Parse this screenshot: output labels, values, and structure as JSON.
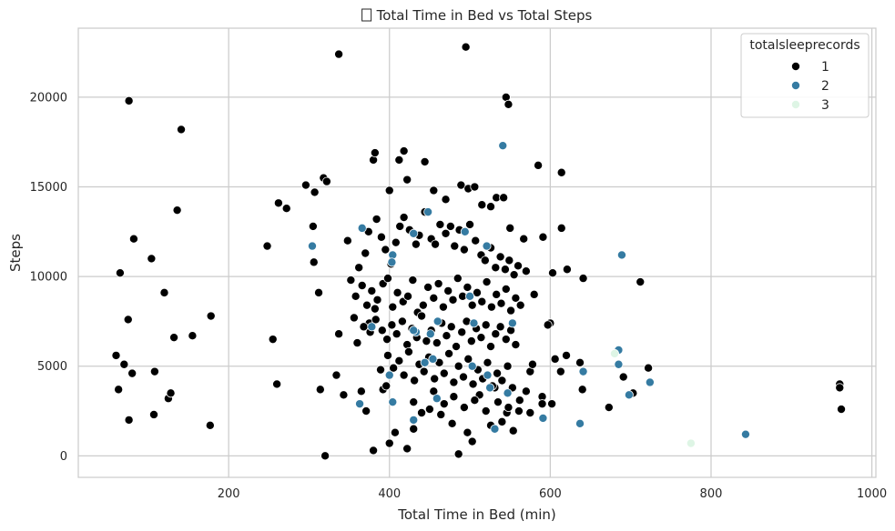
{
  "chart_data": {
    "type": "scatter",
    "title": "Total Time in Bed vs Total Steps",
    "title_icon": "missing-glyph-icon",
    "xlabel": "Total Time in Bed (min)",
    "ylabel": "Steps",
    "xlim": [
      13,
      1005
    ],
    "ylim": [
      -1200,
      23850
    ],
    "xticks": [
      200,
      400,
      600,
      800,
      1000
    ],
    "yticks": [
      0,
      5000,
      10000,
      15000,
      20000
    ],
    "grid": true,
    "legend": {
      "title": "totalsleeprecords",
      "placement": "top-right"
    },
    "series": [
      {
        "name": "1",
        "color": "#000000",
        "points": [
          [
            76,
            19800
          ],
          [
            141,
            18200
          ],
          [
            337,
            22400
          ],
          [
            495,
            22800
          ],
          [
            545,
            20000
          ],
          [
            548,
            19600
          ],
          [
            82,
            12100
          ],
          [
            136,
            13700
          ],
          [
            104,
            11000
          ],
          [
            65,
            10200
          ],
          [
            120,
            9100
          ],
          [
            75,
            7600
          ],
          [
            132,
            6600
          ],
          [
            155,
            6700
          ],
          [
            178,
            7800
          ],
          [
            60,
            5600
          ],
          [
            70,
            5100
          ],
          [
            80,
            4600
          ],
          [
            108,
            4700
          ],
          [
            63,
            3700
          ],
          [
            125,
            3200
          ],
          [
            128,
            3500
          ],
          [
            76,
            2000
          ],
          [
            107,
            2300
          ],
          [
            177,
            1700
          ],
          [
            248,
            11700
          ],
          [
            262,
            14100
          ],
          [
            272,
            13800
          ],
          [
            255,
            6500
          ],
          [
            260,
            4000
          ],
          [
            296,
            15100
          ],
          [
            307,
            14700
          ],
          [
            318,
            15500
          ],
          [
            322,
            15300
          ],
          [
            305,
            12800
          ],
          [
            306,
            10800
          ],
          [
            312,
            9100
          ],
          [
            314,
            3700
          ],
          [
            320,
            0
          ],
          [
            334,
            4500
          ],
          [
            337,
            6800
          ],
          [
            343,
            3400
          ],
          [
            348,
            12000
          ],
          [
            380,
            16500
          ],
          [
            382,
            16900
          ],
          [
            400,
            14800
          ],
          [
            412,
            16500
          ],
          [
            418,
            17000
          ],
          [
            422,
            15400
          ],
          [
            444,
            16400
          ],
          [
            455,
            14800
          ],
          [
            470,
            14300
          ],
          [
            489,
            15100
          ],
          [
            498,
            14900
          ],
          [
            506,
            15000
          ],
          [
            515,
            14000
          ],
          [
            526,
            13900
          ],
          [
            533,
            14400
          ],
          [
            542,
            14400
          ],
          [
            585,
            16200
          ],
          [
            614,
            15800
          ],
          [
            356,
            7700
          ],
          [
            360,
            6300
          ],
          [
            365,
            3600
          ],
          [
            375,
            7400
          ],
          [
            382,
            8200
          ],
          [
            389,
            4800
          ],
          [
            392,
            3700
          ],
          [
            396,
            3900
          ],
          [
            371,
            2500
          ],
          [
            380,
            300
          ],
          [
            400,
            700
          ],
          [
            407,
            1300
          ],
          [
            422,
            400
          ],
          [
            430,
            1500
          ],
          [
            450,
            2600
          ],
          [
            464,
            2300
          ],
          [
            478,
            1800
          ],
          [
            486,
            100
          ],
          [
            497,
            1300
          ],
          [
            503,
            800
          ],
          [
            512,
            3400
          ],
          [
            526,
            1700
          ],
          [
            531,
            3800
          ],
          [
            540,
            1900
          ],
          [
            546,
            2400
          ],
          [
            554,
            1400
          ],
          [
            561,
            2500
          ],
          [
            570,
            3600
          ],
          [
            575,
            4700
          ],
          [
            578,
            5100
          ],
          [
            590,
            3300
          ],
          [
            602,
            2900
          ],
          [
            606,
            5400
          ],
          [
            613,
            4700
          ],
          [
            620,
            5600
          ],
          [
            637,
            5200
          ],
          [
            640,
            3700
          ],
          [
            673,
            2700
          ],
          [
            691,
            4400
          ],
          [
            703,
            3500
          ],
          [
            722,
            4900
          ],
          [
            712,
            9700
          ],
          [
            621,
            10400
          ],
          [
            641,
            9900
          ],
          [
            603,
            10200
          ],
          [
            600,
            7400
          ],
          [
            597,
            7300
          ],
          [
            580,
            9000
          ],
          [
            570,
            10300
          ],
          [
            567,
            12100
          ],
          [
            550,
            12700
          ],
          [
            591,
            12200
          ],
          [
            614,
            12700
          ],
          [
            960,
            4000
          ],
          [
            960,
            3800
          ],
          [
            962,
            2600
          ],
          [
            352,
            9800
          ],
          [
            362,
            10500
          ],
          [
            370,
            11300
          ],
          [
            374,
            12500
          ],
          [
            384,
            13200
          ],
          [
            390,
            12200
          ],
          [
            395,
            11500
          ],
          [
            402,
            10700
          ],
          [
            408,
            11900
          ],
          [
            413,
            12800
          ],
          [
            418,
            13300
          ],
          [
            425,
            12600
          ],
          [
            433,
            11800
          ],
          [
            437,
            12300
          ],
          [
            444,
            13600
          ],
          [
            452,
            12100
          ],
          [
            457,
            11800
          ],
          [
            463,
            12900
          ],
          [
            470,
            12400
          ],
          [
            476,
            12800
          ],
          [
            481,
            11700
          ],
          [
            487,
            12600
          ],
          [
            493,
            11500
          ],
          [
            500,
            12900
          ],
          [
            507,
            12000
          ],
          [
            514,
            11200
          ],
          [
            519,
            10900
          ],
          [
            526,
            11600
          ],
          [
            532,
            10500
          ],
          [
            538,
            11100
          ],
          [
            544,
            10400
          ],
          [
            549,
            10900
          ],
          [
            555,
            10100
          ],
          [
            560,
            10600
          ],
          [
            358,
            8900
          ],
          [
            366,
            9500
          ],
          [
            372,
            8400
          ],
          [
            378,
            9200
          ],
          [
            385,
            8700
          ],
          [
            392,
            9600
          ],
          [
            398,
            9900
          ],
          [
            404,
            8300
          ],
          [
            410,
            9100
          ],
          [
            417,
            8600
          ],
          [
            423,
            8900
          ],
          [
            429,
            9800
          ],
          [
            435,
            8000
          ],
          [
            442,
            8400
          ],
          [
            448,
            9400
          ],
          [
            455,
            8800
          ],
          [
            461,
            9600
          ],
          [
            467,
            8300
          ],
          [
            473,
            9200
          ],
          [
            479,
            8700
          ],
          [
            485,
            9900
          ],
          [
            491,
            8900
          ],
          [
            497,
            9400
          ],
          [
            503,
            8400
          ],
          [
            509,
            9100
          ],
          [
            515,
            8600
          ],
          [
            521,
            9700
          ],
          [
            527,
            8300
          ],
          [
            533,
            9000
          ],
          [
            539,
            8500
          ],
          [
            545,
            9300
          ],
          [
            551,
            8100
          ],
          [
            557,
            8800
          ],
          [
            563,
            8400
          ],
          [
            368,
            7200
          ],
          [
            376,
            6900
          ],
          [
            383,
            7600
          ],
          [
            391,
            7000
          ],
          [
            397,
            6500
          ],
          [
            403,
            7300
          ],
          [
            409,
            6800
          ],
          [
            416,
            7500
          ],
          [
            422,
            6200
          ],
          [
            428,
            7100
          ],
          [
            434,
            6600
          ],
          [
            440,
            7800
          ],
          [
            446,
            6400
          ],
          [
            452,
            7000
          ],
          [
            459,
            6300
          ],
          [
            465,
            7400
          ],
          [
            471,
            6700
          ],
          [
            477,
            7200
          ],
          [
            483,
            6100
          ],
          [
            490,
            6900
          ],
          [
            496,
            7500
          ],
          [
            502,
            6400
          ],
          [
            508,
            7100
          ],
          [
            514,
            6600
          ],
          [
            520,
            7300
          ],
          [
            526,
            6100
          ],
          [
            532,
            6800
          ],
          [
            538,
            7200
          ],
          [
            545,
            6500
          ],
          [
            551,
            7000
          ],
          [
            557,
            6200
          ],
          [
            398,
            5600
          ],
          [
            405,
            4900
          ],
          [
            412,
            5300
          ],
          [
            418,
            4500
          ],
          [
            424,
            5800
          ],
          [
            431,
            4200
          ],
          [
            437,
            5100
          ],
          [
            443,
            4700
          ],
          [
            449,
            5500
          ],
          [
            456,
            4300
          ],
          [
            462,
            5200
          ],
          [
            468,
            4600
          ],
          [
            474,
            5700
          ],
          [
            480,
            4100
          ],
          [
            486,
            5000
          ],
          [
            492,
            4400
          ],
          [
            498,
            5400
          ],
          [
            504,
            4000
          ],
          [
            510,
            4800
          ],
          [
            516,
            4300
          ],
          [
            522,
            5200
          ],
          [
            528,
            3900
          ],
          [
            534,
            4600
          ],
          [
            540,
            4200
          ],
          [
            547,
            5000
          ],
          [
            553,
            3800
          ],
          [
            430,
            3000
          ],
          [
            440,
            2400
          ],
          [
            455,
            3600
          ],
          [
            468,
            2900
          ],
          [
            480,
            3300
          ],
          [
            493,
            2700
          ],
          [
            506,
            3100
          ],
          [
            520,
            2500
          ],
          [
            535,
            3000
          ],
          [
            548,
            2700
          ],
          [
            562,
            3100
          ],
          [
            575,
            2400
          ],
          [
            590,
            2900
          ]
        ]
      },
      {
        "name": "2",
        "color": "#357ba2",
        "points": [
          [
            541,
            17300
          ],
          [
            689,
            11200
          ],
          [
            304,
            11700
          ],
          [
            366,
            12700
          ],
          [
            404,
            11200
          ],
          [
            403,
            10800
          ],
          [
            430,
            12400
          ],
          [
            448,
            13600
          ],
          [
            494,
            12500
          ],
          [
            521,
            11700
          ],
          [
            500,
            8900
          ],
          [
            505,
            7400
          ],
          [
            553,
            7400
          ],
          [
            460,
            7500
          ],
          [
            451,
            6800
          ],
          [
            433,
            6900
          ],
          [
            444,
            5200
          ],
          [
            454,
            5400
          ],
          [
            430,
            7000
          ],
          [
            378,
            7200
          ],
          [
            363,
            2900
          ],
          [
            400,
            4500
          ],
          [
            404,
            3000
          ],
          [
            430,
            2000
          ],
          [
            459,
            3200
          ],
          [
            503,
            5000
          ],
          [
            522,
            4500
          ],
          [
            525,
            3800
          ],
          [
            531,
            1500
          ],
          [
            547,
            3500
          ],
          [
            591,
            2100
          ],
          [
            637,
            1800
          ],
          [
            641,
            4700
          ],
          [
            685,
            5900
          ],
          [
            685,
            5100
          ],
          [
            698,
            3400
          ],
          [
            724,
            4100
          ],
          [
            843,
            1200
          ]
        ]
      },
      {
        "name": "3",
        "color": "#def5e5",
        "points": [
          [
            680,
            5700
          ],
          [
            775,
            700
          ]
        ]
      }
    ]
  }
}
